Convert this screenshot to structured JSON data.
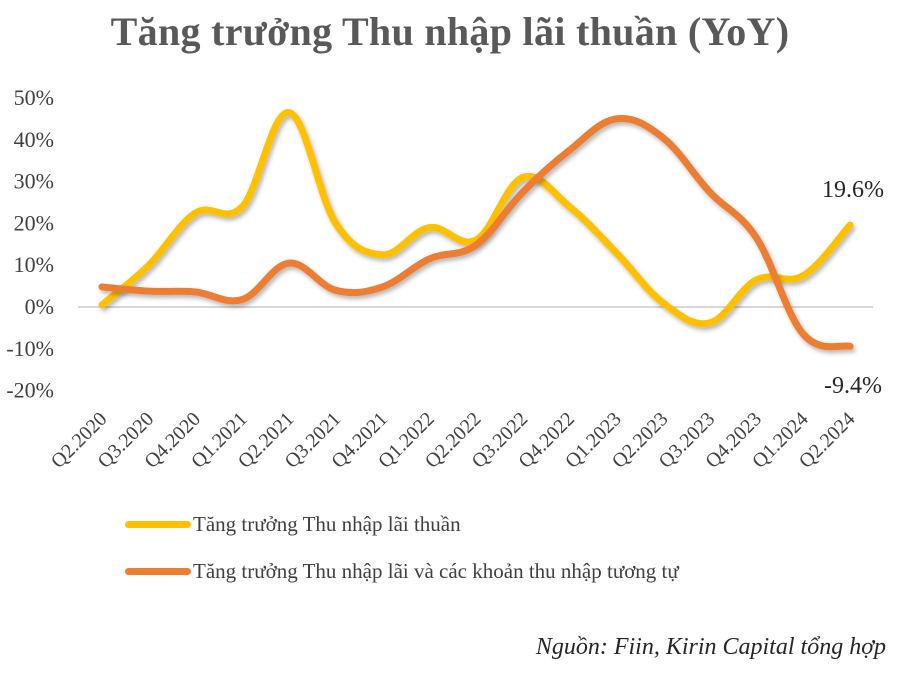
{
  "chart_data": {
    "type": "line",
    "title": "Tăng trưởng Thu nhập lãi thuần (YoY)",
    "xlabel": "",
    "ylabel": "",
    "ylim": [
      -20,
      50
    ],
    "yticks": [
      "50%",
      "40%",
      "30%",
      "20%",
      "10%",
      "0%",
      "-10%",
      "-20%"
    ],
    "ytick_values": [
      50,
      40,
      30,
      20,
      10,
      0,
      -10,
      -20
    ],
    "grid": false,
    "zero_line": true,
    "legend_position": "bottom",
    "categories": [
      "Q2.2020",
      "Q3.2020",
      "Q4.2020",
      "Q1.2021",
      "Q2.2021",
      "Q3.2021",
      "Q4.2021",
      "Q1.2022",
      "Q2.2022",
      "Q3.2022",
      "Q4.2022",
      "Q1.2023",
      "Q2.2023",
      "Q3.2023",
      "Q4.2023",
      "Q1.2024",
      "Q2.2024"
    ],
    "series": [
      {
        "name": "Tăng trưởng Thu nhập lãi thuần",
        "color": "#FFC000",
        "values": [
          0.5,
          10,
          22.5,
          24,
          46.5,
          20,
          12.5,
          19,
          16,
          31,
          24,
          13,
          1,
          -3.8,
          6.5,
          7.5,
          19.6
        ],
        "end_label": "19.6%"
      },
      {
        "name": "Tăng trưởng Thu nhập lãi và các khoản thu nhập tương tự",
        "color": "#ED7D31",
        "values": [
          4.8,
          3.8,
          3.6,
          1.8,
          10.5,
          4,
          4.8,
          11.5,
          14.8,
          27.5,
          37.5,
          45,
          40.5,
          27.5,
          16.5,
          -6.5,
          -9.4
        ],
        "end_label": "-9.4%"
      }
    ],
    "annotations": [
      "19.6%",
      "-9.4%"
    ]
  },
  "title": "Tăng trưởng Thu nhập lãi thuần (YoY)",
  "legend": {
    "items": [
      {
        "label": "Tăng trưởng Thu nhập lãi thuần",
        "color": "#FFC000"
      },
      {
        "label": "Tăng trưởng Thu nhập lãi và các khoản thu nhập tương tự",
        "color": "#ED7D31"
      }
    ]
  },
  "source": "Nguồn: Fiin, Kirin Capital tổng hợp"
}
